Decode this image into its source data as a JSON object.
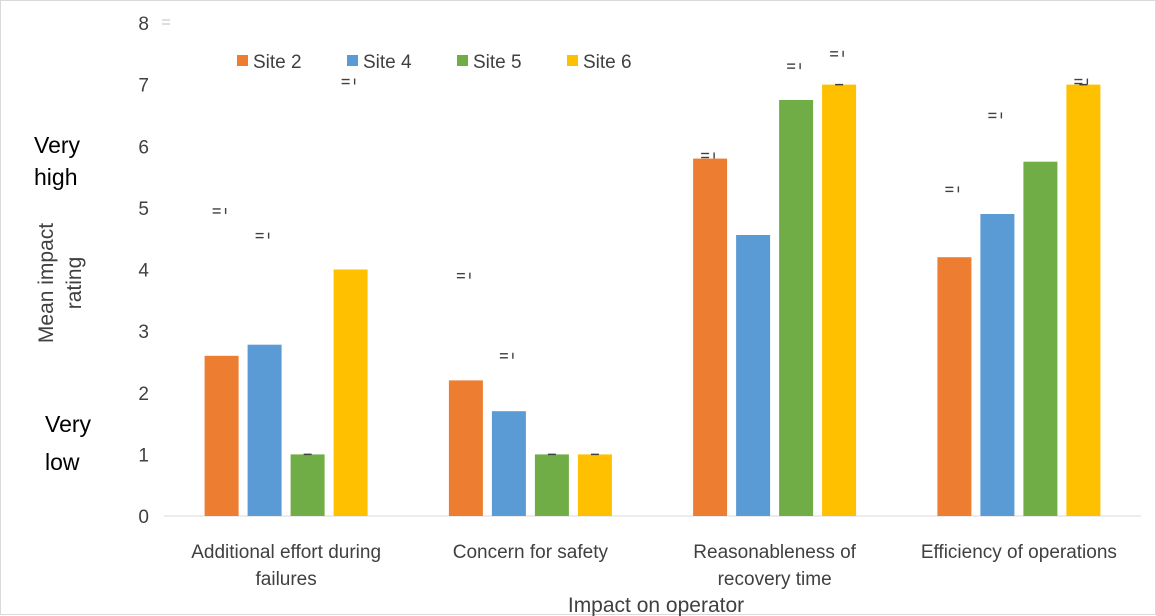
{
  "chart_data": {
    "type": "bar",
    "title": "",
    "xlabel": "Impact on operator",
    "ylabel": "Mean impact rating",
    "ylim": [
      0,
      8
    ],
    "yticks": [
      0,
      1,
      2,
      3,
      4,
      5,
      6,
      7,
      8
    ],
    "grid": false,
    "legend_position": "top",
    "scale_anchors": {
      "high": "Very high",
      "low": "Very low"
    },
    "categories": [
      [
        "Additional effort during",
        "failures"
      ],
      [
        "Concern for safety"
      ],
      [
        "Reasonableness of",
        "recovery time"
      ],
      [
        "Efficiency of operations"
      ]
    ],
    "series": [
      {
        "name": "Site 2",
        "color": "#ED7D31",
        "values": [
          2.6,
          2.2,
          5.8,
          4.2
        ],
        "err_top": [
          4.95,
          3.9,
          5.85,
          5.3
        ]
      },
      {
        "name": "Site 4",
        "color": "#5B9BD5",
        "values": [
          2.78,
          1.7,
          4.56,
          4.9
        ],
        "err_top": [
          4.55,
          2.6,
          null,
          6.5
        ]
      },
      {
        "name": "Site 5",
        "color": "#70AD47",
        "values": [
          1.0,
          1.0,
          6.75,
          5.75
        ],
        "err_top": [
          null,
          null,
          7.3,
          null
        ]
      },
      {
        "name": "Site 6",
        "color": "#FFC000",
        "values": [
          4.0,
          1.0,
          7.0,
          7.0
        ],
        "err_top": [
          7.05,
          null,
          7.5,
          7.05
        ]
      }
    ]
  }
}
